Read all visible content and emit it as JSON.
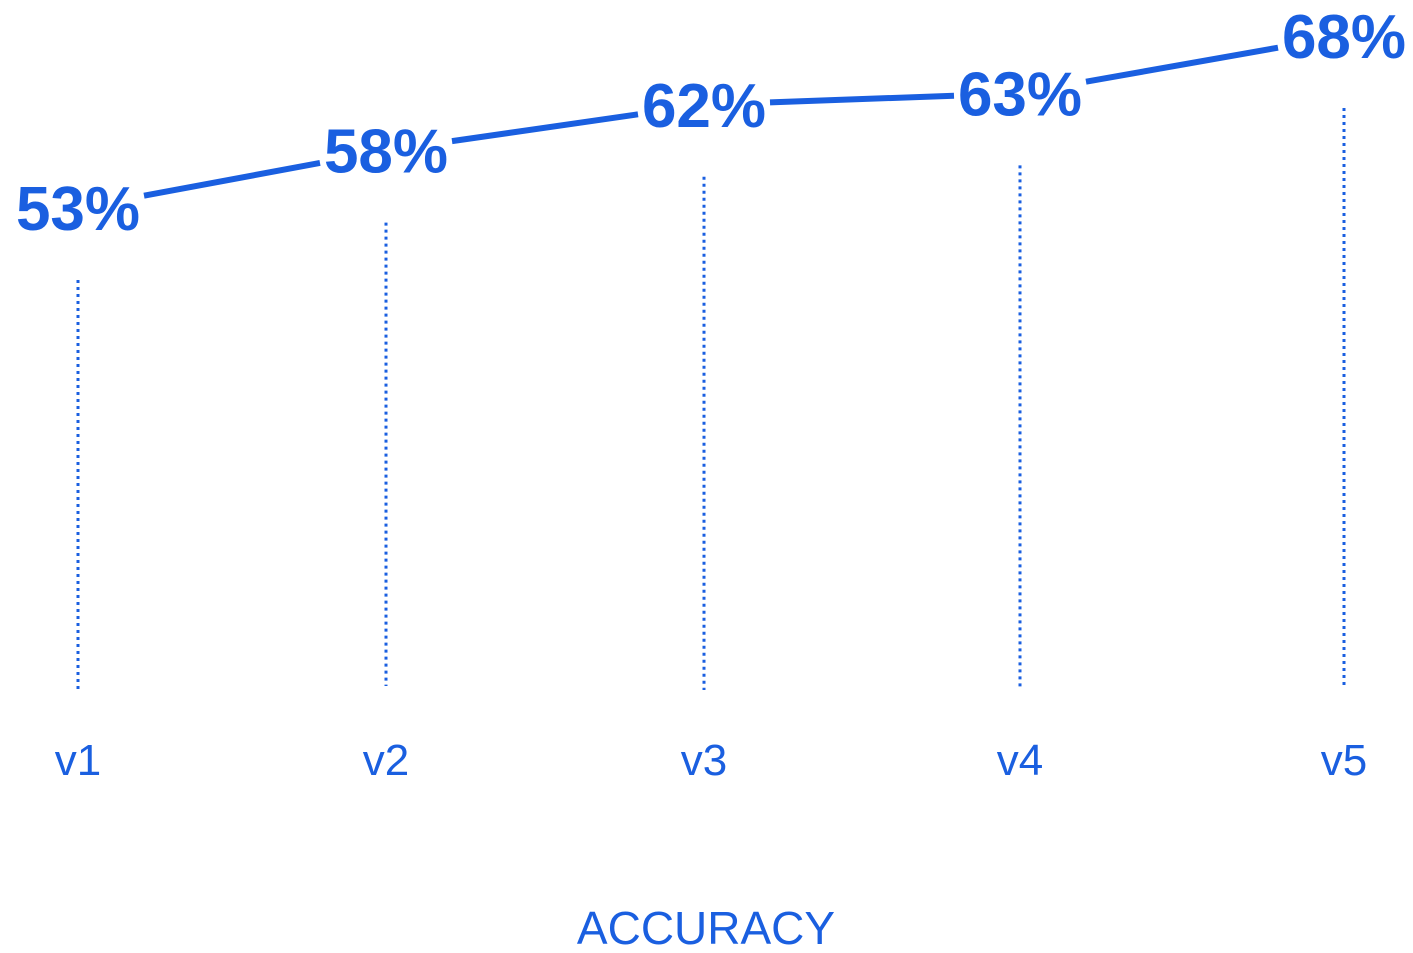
{
  "chart_data": {
    "type": "line",
    "title": "",
    "xlabel": "ACCURACY",
    "ylabel": "",
    "categories": [
      "v1",
      "v2",
      "v3",
      "v4",
      "v5"
    ],
    "series": [
      {
        "values": [
          53,
          58,
          62,
          63,
          68
        ],
        "data_labels": [
          "53%",
          "58%",
          "62%",
          "63%",
          "68%"
        ]
      }
    ],
    "y_unit": "%",
    "ylim": [
      0,
      68
    ],
    "grid": false,
    "legend": "none",
    "drop_lines": "dotted",
    "color": "#1a5fe0"
  }
}
